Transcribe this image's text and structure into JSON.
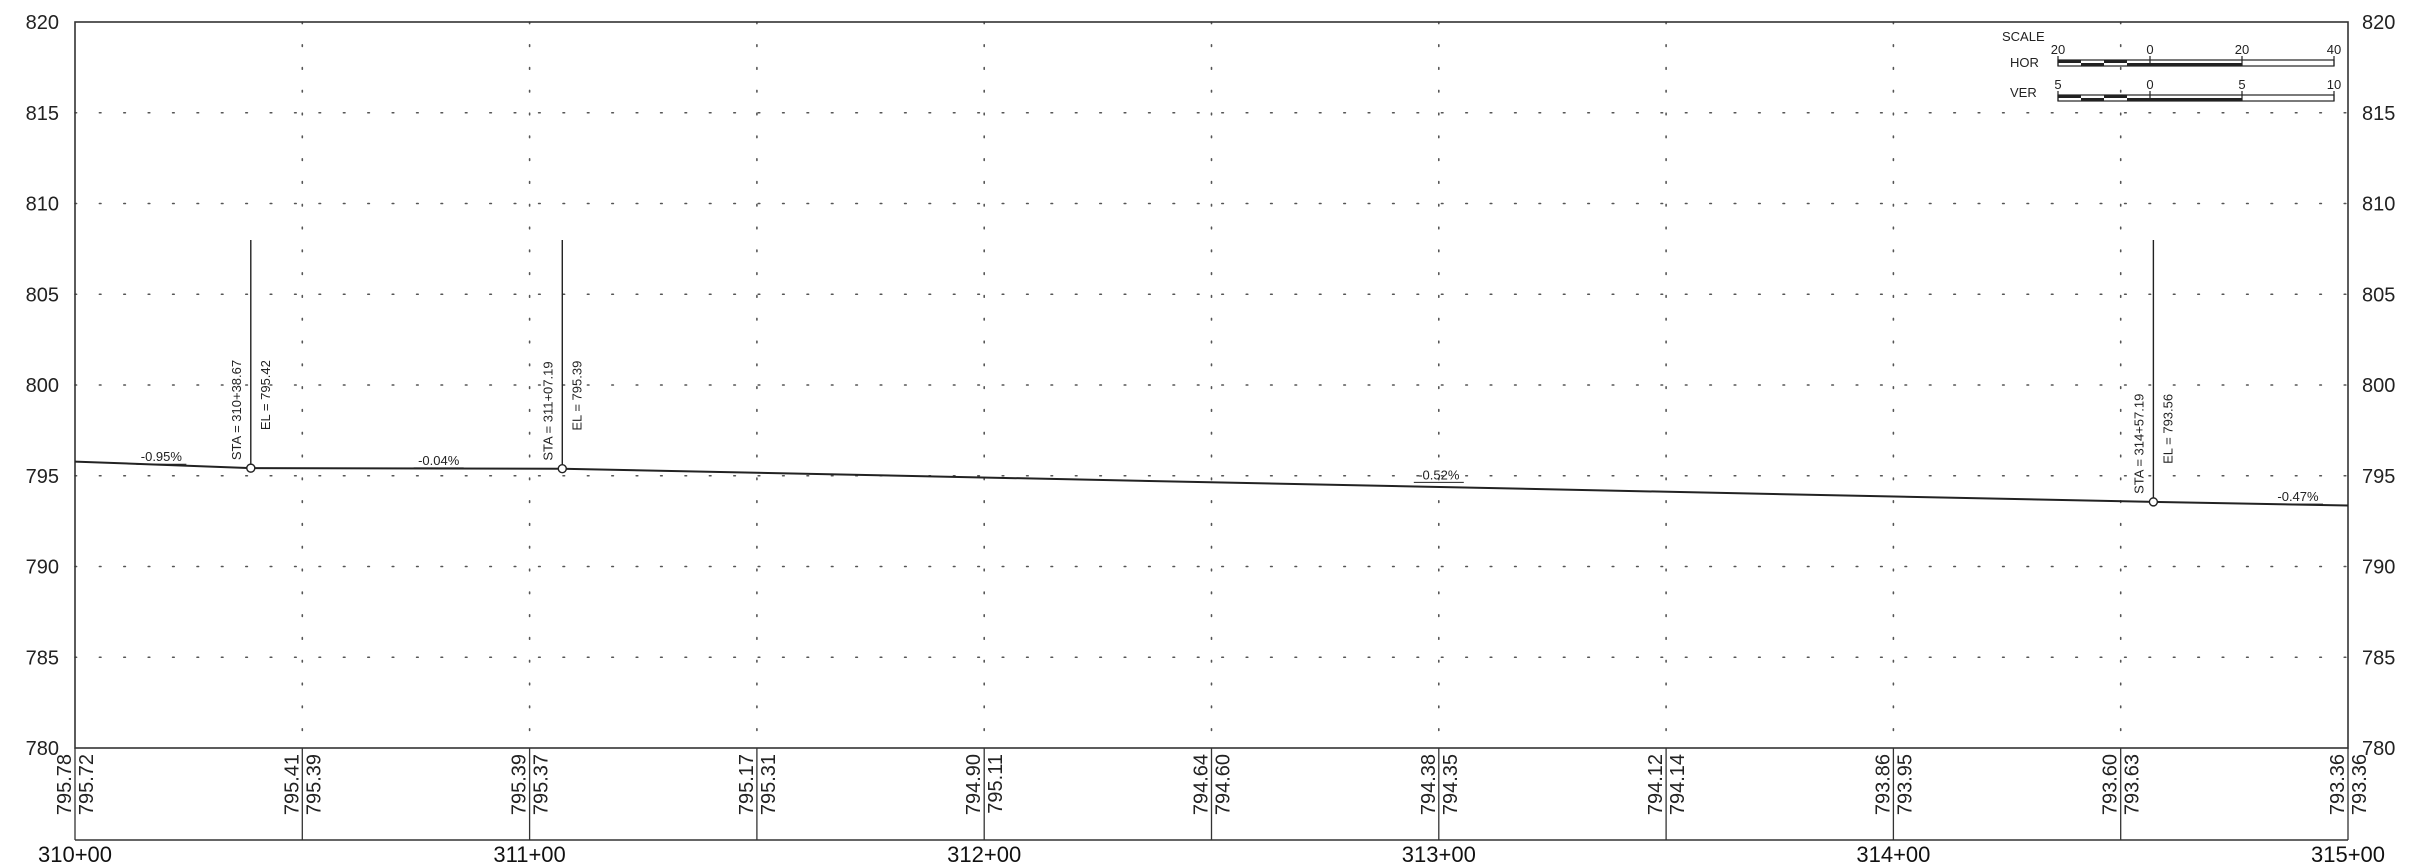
{
  "chart_data": {
    "type": "line",
    "title": "",
    "xlabel": "",
    "ylabel": "",
    "xlim": [
      31000,
      31500
    ],
    "ylim": [
      780,
      820
    ],
    "y_ticks": [
      "780",
      "785",
      "790",
      "795",
      "800",
      "805",
      "810",
      "815",
      "820"
    ],
    "x_ticks": [
      {
        "x": 31000,
        "label": "310+00"
      },
      {
        "x": 31100,
        "label": "311+00"
      },
      {
        "x": 31200,
        "label": "312+00"
      },
      {
        "x": 31300,
        "label": "313+00"
      },
      {
        "x": 31400,
        "label": "314+00"
      },
      {
        "x": 31500,
        "label": "315+00"
      }
    ],
    "grid": true,
    "profile": [
      {
        "x": 31000,
        "y": 795.78
      },
      {
        "x": 31038.67,
        "y": 795.42
      },
      {
        "x": 31107.19,
        "y": 795.39
      },
      {
        "x": 31457.19,
        "y": 793.56
      },
      {
        "x": 31500,
        "y": 793.36
      }
    ],
    "annotations": [
      {
        "x": 31038.67,
        "y": 795.42,
        "sta": "STA = 310+38.67",
        "el": "EL = 795.42"
      },
      {
        "x": 31107.19,
        "y": 795.39,
        "sta": "STA = 311+07.19",
        "el": "EL = 795.39"
      },
      {
        "x": 31457.19,
        "y": 793.56,
        "sta": "STA = 314+57.19",
        "el": "EL = 793.56"
      }
    ],
    "grades": [
      {
        "x": 31019,
        "y": 795.8,
        "text": "-0.95%"
      },
      {
        "x": 31080,
        "y": 795.6,
        "text": "-0.04%"
      },
      {
        "x": 31300,
        "y": 794.8,
        "text": "-0.52%"
      },
      {
        "x": 31489,
        "y": 793.6,
        "text": "-0.47%"
      }
    ],
    "elevation_labels": [
      {
        "x": 31000,
        "a": "795.78",
        "b": "795.72"
      },
      {
        "x": 31050,
        "a": "795.41",
        "b": "795.39"
      },
      {
        "x": 31100,
        "a": "795.39",
        "b": "795.37"
      },
      {
        "x": 31150,
        "a": "795.17",
        "b": "795.31"
      },
      {
        "x": 31200,
        "a": "794.90",
        "b": "795.11"
      },
      {
        "x": 31250,
        "a": "794.64",
        "b": "794.60"
      },
      {
        "x": 31300,
        "a": "794.38",
        "b": "794.35"
      },
      {
        "x": 31350,
        "a": "794.12",
        "b": "794.14"
      },
      {
        "x": 31400,
        "a": "793.86",
        "b": "793.95"
      },
      {
        "x": 31450,
        "a": "793.60",
        "b": "793.63"
      },
      {
        "x": 31500,
        "a": "793.36",
        "b": "793.36"
      }
    ],
    "scale_legend": {
      "title": "SCALE",
      "hor_label": "HOR",
      "ver_label": "VER",
      "hor_ticks": [
        "20",
        "0",
        "20",
        "40"
      ],
      "ver_ticks": [
        "5",
        "0",
        "5",
        "10"
      ]
    }
  }
}
